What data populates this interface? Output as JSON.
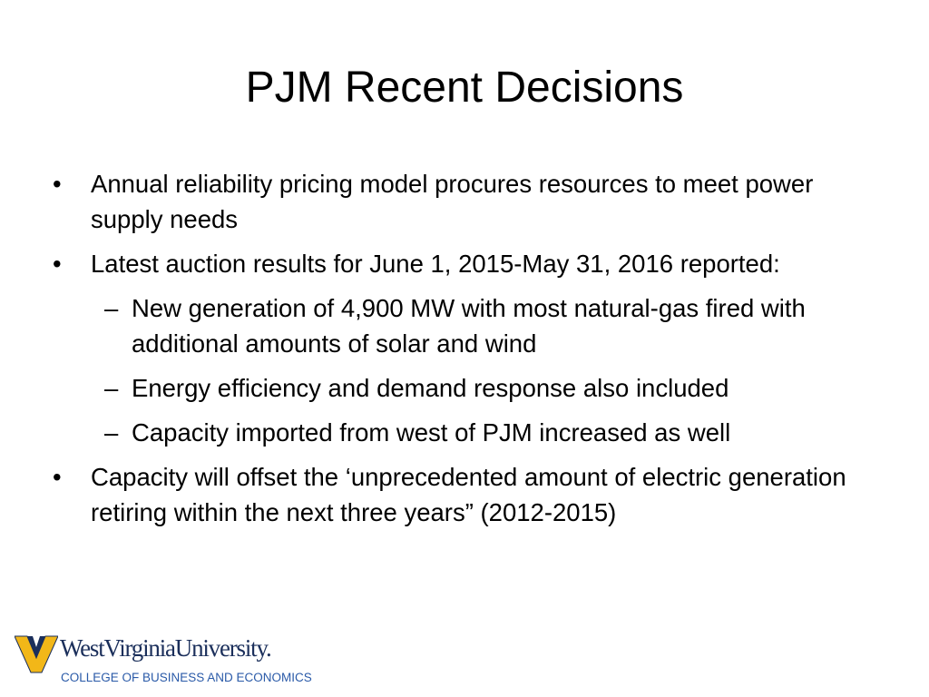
{
  "slide": {
    "title": "PJM Recent Decisions",
    "bullets": [
      {
        "text": "Annual reliability pricing model procures resources to meet power supply needs"
      },
      {
        "text": "Latest auction results for June 1, 2015-May 31, 2016 reported:",
        "sub": [
          "New generation of 4,900 MW with most natural-gas fired with additional amounts of solar and wind",
          "Energy efficiency and demand response also included",
          "Capacity imported from west of PJM increased as well"
        ]
      },
      {
        "text": "Capacity will offset the ‘unprecedented amount of electric generation retiring within the next three years” (2012-2015)"
      }
    ]
  },
  "footer": {
    "logo_name": "WestVirginiaUniversity.",
    "logo_subtitle": "COLLEGE OF BUSINESS AND ECONOMICS"
  }
}
